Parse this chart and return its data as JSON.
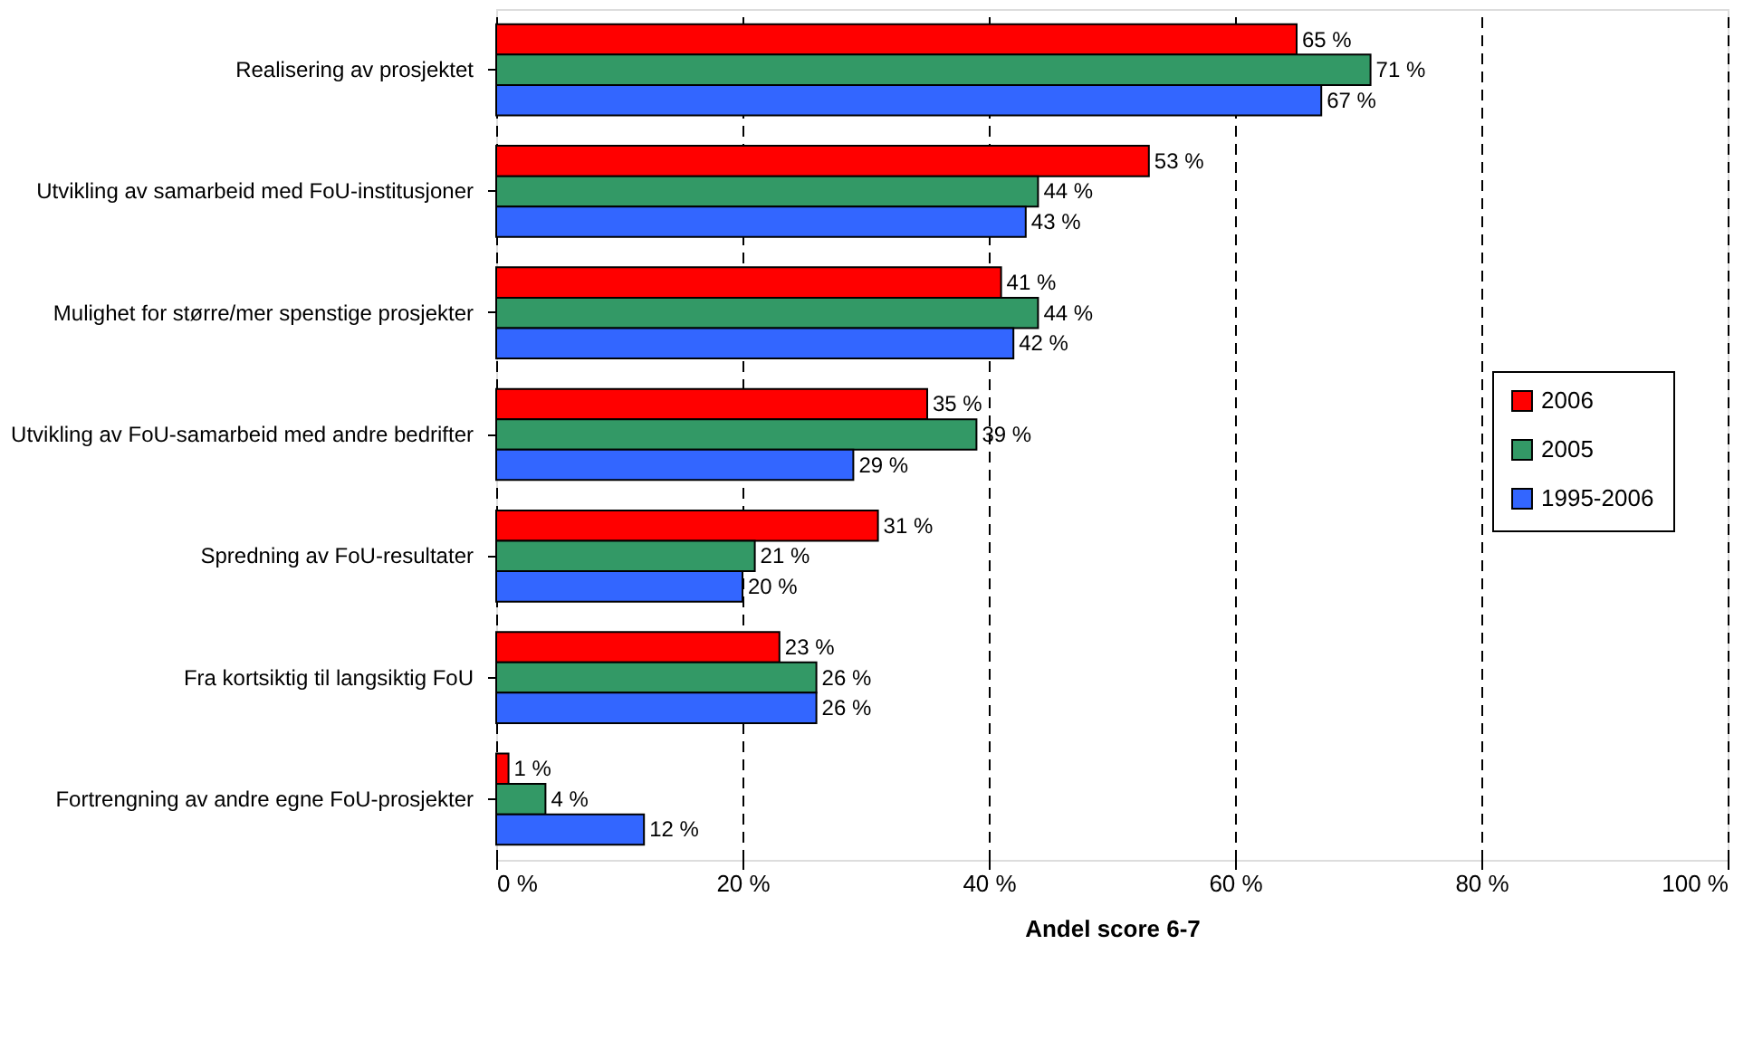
{
  "chart_data": {
    "type": "bar",
    "orientation": "horizontal",
    "xlabel": "Andel score 6-7",
    "categories": [
      "Realisering av prosjektet",
      "Utvikling av samarbeid med FoU-institusjoner",
      "Mulighet for større/mer spenstige prosjekter",
      "Utvikling av FoU-samarbeid med andre bedrifter",
      "Spredning av FoU-resultater",
      "Fra kortsiktig til langsiktig FoU",
      "Fortrengning av andre egne FoU-prosjekter"
    ],
    "series": [
      {
        "name": "2006",
        "color": "#ff0000",
        "values": [
          65,
          53,
          41,
          35,
          31,
          23,
          1
        ],
        "value_labels": [
          "65 %",
          "53 %",
          "41 %",
          "35 %",
          "31 %",
          "23 %",
          "1 %"
        ]
      },
      {
        "name": "2005",
        "color": "#339966",
        "values": [
          71,
          44,
          44,
          39,
          21,
          26,
          4
        ],
        "value_labels": [
          "71 %",
          "44 %",
          "44 %",
          "39 %",
          "21 %",
          "26 %",
          "4 %"
        ]
      },
      {
        "name": "1995-2006",
        "color": "#3366ff",
        "values": [
          67,
          43,
          42,
          29,
          20,
          26,
          12
        ],
        "value_labels": [
          "67 %",
          "43 %",
          "42 %",
          "29 %",
          "20 %",
          "26 %",
          "12 %"
        ]
      }
    ],
    "xlim": [
      0,
      100
    ],
    "xticks": [
      {
        "value": 0,
        "label": "0 %"
      },
      {
        "value": 20,
        "label": "20 %"
      },
      {
        "value": 40,
        "label": "40 %"
      },
      {
        "value": 60,
        "label": "60 %"
      },
      {
        "value": 80,
        "label": "80 %"
      },
      {
        "value": 100,
        "label": "100 %"
      }
    ],
    "grid": "x",
    "legend": "right"
  }
}
